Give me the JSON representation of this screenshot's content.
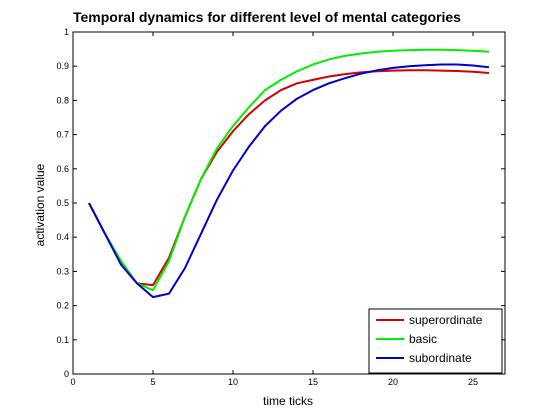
{
  "chart_data": {
    "type": "line",
    "title": "Temporal dynamics for different level of mental categories",
    "xlabel": "time ticks",
    "ylabel": "activation value",
    "xlim": [
      0,
      27
    ],
    "ylim": [
      0,
      1
    ],
    "xticks": [
      0,
      5,
      10,
      15,
      20,
      25
    ],
    "yticks": [
      0,
      0.1,
      0.2,
      0.3,
      0.4,
      0.5,
      0.6,
      0.7,
      0.8,
      0.9,
      1
    ],
    "xtick_labels": [
      "0",
      "5",
      "10",
      "15",
      "20",
      "25"
    ],
    "ytick_labels": [
      "0",
      "0.1",
      "0.2",
      "0.3",
      "0.4",
      "0.5",
      "0.6",
      "0.7",
      "0.8",
      "0.9",
      "1"
    ],
    "grid": false,
    "legend_position": "bottom-right",
    "x": [
      1,
      2,
      3,
      4,
      5,
      6,
      7,
      8,
      9,
      10,
      11,
      12,
      13,
      14,
      15,
      16,
      17,
      18,
      19,
      20,
      21,
      22,
      23,
      24,
      25,
      26
    ],
    "series": [
      {
        "name": "superordinate",
        "color": "#d40000",
        "values": [
          0.5,
          0.41,
          0.33,
          0.265,
          0.26,
          0.34,
          0.46,
          0.57,
          0.65,
          0.71,
          0.76,
          0.8,
          0.83,
          0.85,
          0.86,
          0.87,
          0.877,
          0.882,
          0.885,
          0.887,
          0.888,
          0.888,
          0.887,
          0.886,
          0.884,
          0.88
        ]
      },
      {
        "name": "basic",
        "color": "#00ee00",
        "values": [
          0.5,
          0.41,
          0.33,
          0.265,
          0.245,
          0.33,
          0.46,
          0.57,
          0.66,
          0.725,
          0.78,
          0.83,
          0.86,
          0.885,
          0.905,
          0.92,
          0.93,
          0.937,
          0.942,
          0.945,
          0.947,
          0.948,
          0.948,
          0.947,
          0.945,
          0.942
        ]
      },
      {
        "name": "subordinate",
        "color": "#0000cc",
        "values": [
          0.5,
          0.41,
          0.32,
          0.265,
          0.225,
          0.235,
          0.31,
          0.41,
          0.51,
          0.595,
          0.665,
          0.725,
          0.77,
          0.805,
          0.83,
          0.85,
          0.865,
          0.878,
          0.888,
          0.895,
          0.9,
          0.903,
          0.905,
          0.905,
          0.902,
          0.897
        ]
      }
    ]
  }
}
